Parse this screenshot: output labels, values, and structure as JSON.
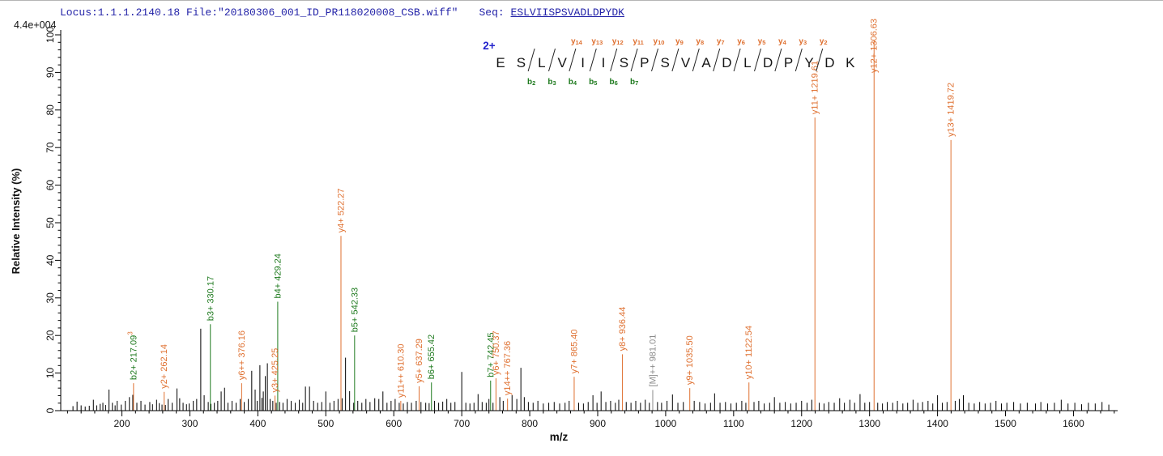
{
  "header": {
    "locus_file": "Locus:1.1.1.2140.18 File:\"20180306_001_ID_PR118020008_CSB.wiff\"",
    "seq_label": "Seq:",
    "seq_value": "ESLVIISPSVADLDPYDK",
    "max_intensity": "4.4e+004"
  },
  "colors": {
    "y_ion": "#DF7030",
    "b_ion": "#1E7A1E",
    "precursor": "#8C8C8C",
    "noise": "#000000",
    "axis": "#000000",
    "charge": "#2222CC",
    "header_text": "#2323A8"
  },
  "chart_data": {
    "type": "ms2_peak_spectrum",
    "xlabel": "m/z",
    "ylabel": "Relative  Intensity (%)",
    "x_axis": {
      "min": 110,
      "max": 1665,
      "label_start": 200,
      "label_end": 1600,
      "major_step": 100,
      "minor_step": 20
    },
    "y_axis": {
      "min": 0,
      "max": 100,
      "major_step": 10,
      "minor_step": 2
    },
    "precursor_charge": "2+",
    "sequence": "ESLVIISPSVADLDPYDK",
    "cleavages": [
      {
        "pos": 2,
        "b": "b2"
      },
      {
        "pos": 3,
        "b": "b3"
      },
      {
        "pos": 4,
        "b": "b4",
        "y": "y14"
      },
      {
        "pos": 5,
        "b": "b5",
        "y": "y13"
      },
      {
        "pos": 6,
        "b": "b6",
        "y": "y12"
      },
      {
        "pos": 7,
        "b": "b7",
        "y": "y11"
      },
      {
        "pos": 8,
        "y": "y10"
      },
      {
        "pos": 9,
        "y": "y9"
      },
      {
        "pos": 10,
        "y": "y8"
      },
      {
        "pos": 11,
        "y": "y7"
      },
      {
        "pos": 12,
        "y": "y6"
      },
      {
        "pos": 13,
        "y": "y5"
      },
      {
        "pos": 14,
        "y": "y4"
      },
      {
        "pos": 15,
        "y": "y3"
      },
      {
        "pos": 16,
        "y": "y2"
      }
    ],
    "labeled_peaks": [
      {
        "mz": 217.09,
        "pct": 7.3,
        "type": "b",
        "label": "b2+ 217.09",
        "sup": "3",
        "line": "y"
      },
      {
        "mz": 262.14,
        "pct": 5.0,
        "type": "y",
        "label": "y2+ 262.14"
      },
      {
        "mz": 330.17,
        "pct": 23.0,
        "type": "b",
        "label": "b3+ 330.17"
      },
      {
        "mz": 376.16,
        "pct": 7.3,
        "type": "y",
        "label": "y6++ 376.16"
      },
      {
        "mz": 425.25,
        "pct": 4.0,
        "type": "y",
        "label": "y3+ 425.25"
      },
      {
        "mz": 429.24,
        "pct": 29.0,
        "type": "b",
        "label": "b4+ 429.24"
      },
      {
        "mz": 522.27,
        "pct": 46.5,
        "type": "y",
        "label": "y4+ 522.27"
      },
      {
        "mz": 542.33,
        "pct": 20.0,
        "type": "b",
        "label": "b5+ 542.33"
      },
      {
        "mz": 610.3,
        "pct": 2.6,
        "type": "y",
        "label": "y11++ 610.30"
      },
      {
        "mz": 637.29,
        "pct": 6.5,
        "type": "y",
        "label": "y5+ 637.29"
      },
      {
        "mz": 655.42,
        "pct": 7.5,
        "type": "b",
        "label": "b6+ 655.42"
      },
      {
        "mz": 742.45,
        "pct": 8.0,
        "type": "b",
        "label": "b7+ 742.45"
      },
      {
        "mz": 750.37,
        "pct": 8.6,
        "type": "y",
        "label": "y6+ 750.37"
      },
      {
        "mz": 767.36,
        "pct": 3.2,
        "type": "y",
        "label": "y14++ 767.36"
      },
      {
        "mz": 865.4,
        "pct": 9.0,
        "type": "y",
        "label": "y7+ 865.40"
      },
      {
        "mz": 936.44,
        "pct": 15.0,
        "type": "y",
        "label": "y8+ 936.44"
      },
      {
        "mz": 981.01,
        "pct": 5.5,
        "type": "M",
        "label": "[M]++ 981.01"
      },
      {
        "mz": 1035.5,
        "pct": 6.0,
        "type": "y",
        "label": "y9+ 1035.50"
      },
      {
        "mz": 1122.54,
        "pct": 7.5,
        "type": "y",
        "label": "y10+ 1122.54"
      },
      {
        "mz": 1219.61,
        "pct": 78.0,
        "type": "y",
        "label": "y11+ 1219.61"
      },
      {
        "mz": 1306.63,
        "pct": 98.5,
        "type": "y",
        "label": "y12+ 1306.63",
        "label_dy": 40
      },
      {
        "mz": 1419.72,
        "pct": 72.0,
        "type": "y",
        "label": "y13+ 1419.72"
      }
    ],
    "noise_peaks": [
      [
        128,
        1.2
      ],
      [
        134,
        2.4
      ],
      [
        140,
        1.4
      ],
      [
        146,
        1.1
      ],
      [
        152,
        1.3
      ],
      [
        158,
        2.9
      ],
      [
        163,
        1.4
      ],
      [
        168,
        1.8
      ],
      [
        172,
        2.1
      ],
      [
        176,
        1.5
      ],
      [
        181,
        5.6
      ],
      [
        186,
        2.1
      ],
      [
        190,
        1.4
      ],
      [
        193,
        2.6
      ],
      [
        199,
        1.6
      ],
      [
        205,
        2.6
      ],
      [
        211,
        3.6
      ],
      [
        216,
        4.2
      ],
      [
        222,
        2.1
      ],
      [
        228,
        2.6
      ],
      [
        234,
        1.6
      ],
      [
        241,
        2.3
      ],
      [
        245,
        1.7
      ],
      [
        251,
        2.9
      ],
      [
        255,
        2.0
      ],
      [
        259,
        1.6
      ],
      [
        264,
        1.5
      ],
      [
        268,
        3.1
      ],
      [
        274,
        2.1
      ],
      [
        281,
        5.9
      ],
      [
        285,
        3.3
      ],
      [
        290,
        2.1
      ],
      [
        295,
        1.7
      ],
      [
        299,
        1.9
      ],
      [
        305,
        2.6
      ],
      [
        310,
        3.1
      ],
      [
        316,
        21.8
      ],
      [
        321,
        4.1
      ],
      [
        327,
        2.3
      ],
      [
        331,
        1.8
      ],
      [
        336,
        2.1
      ],
      [
        341,
        2.6
      ],
      [
        346,
        5.1
      ],
      [
        351,
        6.1
      ],
      [
        356,
        2.1
      ],
      [
        362,
        2.6
      ],
      [
        368,
        2.1
      ],
      [
        374,
        3.1
      ],
      [
        380,
        2.3
      ],
      [
        386,
        3.1
      ],
      [
        391,
        10.6
      ],
      [
        396,
        5.6
      ],
      [
        399,
        2.6
      ],
      [
        403,
        12.1
      ],
      [
        406,
        3.4
      ],
      [
        408,
        5.1
      ],
      [
        411,
        9.2
      ],
      [
        414,
        12.6
      ],
      [
        418,
        3.1
      ],
      [
        422,
        2.6
      ],
      [
        427,
        2.1
      ],
      [
        432,
        2.3
      ],
      [
        437,
        2.1
      ],
      [
        443,
        3.1
      ],
      [
        449,
        2.6
      ],
      [
        455,
        2.1
      ],
      [
        461,
        2.9
      ],
      [
        466,
        2.1
      ],
      [
        470,
        6.4
      ],
      [
        476,
        6.4
      ],
      [
        482,
        2.6
      ],
      [
        488,
        2.1
      ],
      [
        494,
        2.3
      ],
      [
        500,
        5.1
      ],
      [
        506,
        2.1
      ],
      [
        512,
        2.6
      ],
      [
        518,
        3.1
      ],
      [
        524,
        3.3
      ],
      [
        529,
        14.1
      ],
      [
        535,
        5.2
      ],
      [
        541,
        2.1
      ],
      [
        547,
        2.6
      ],
      [
        553,
        2.1
      ],
      [
        559,
        3.1
      ],
      [
        565,
        2.3
      ],
      [
        572,
        3.3
      ],
      [
        578,
        3.1
      ],
      [
        584,
        5.1
      ],
      [
        590,
        2.1
      ],
      [
        596,
        2.6
      ],
      [
        602,
        3.1
      ],
      [
        608,
        2.1
      ],
      [
        614,
        1.9
      ],
      [
        620,
        2.3
      ],
      [
        626,
        2.1
      ],
      [
        633,
        2.6
      ],
      [
        640,
        2.3
      ],
      [
        647,
        2.1
      ],
      [
        652,
        2.0
      ],
      [
        660,
        2.6
      ],
      [
        666,
        2.1
      ],
      [
        672,
        2.4
      ],
      [
        678,
        3.1
      ],
      [
        684,
        2.1
      ],
      [
        690,
        2.3
      ],
      [
        700,
        10.3
      ],
      [
        706,
        2.1
      ],
      [
        712,
        1.9
      ],
      [
        718,
        2.1
      ],
      [
        724,
        4.4
      ],
      [
        730,
        2.3
      ],
      [
        736,
        2.1
      ],
      [
        740,
        3.1
      ],
      [
        746,
        2.1
      ],
      [
        756,
        3.6
      ],
      [
        761,
        2.6
      ],
      [
        774,
        4.1
      ],
      [
        781,
        3.1
      ],
      [
        787,
        11.4
      ],
      [
        792,
        3.6
      ],
      [
        798,
        2.3
      ],
      [
        805,
        2.1
      ],
      [
        812,
        2.6
      ],
      [
        820,
        1.9
      ],
      [
        828,
        2.1
      ],
      [
        836,
        2.3
      ],
      [
        844,
        1.9
      ],
      [
        852,
        2.1
      ],
      [
        858,
        2.6
      ],
      [
        872,
        2.1
      ],
      [
        879,
        1.9
      ],
      [
        886,
        2.3
      ],
      [
        893,
        4.1
      ],
      [
        899,
        2.1
      ],
      [
        905,
        5.1
      ],
      [
        912,
        2.3
      ],
      [
        919,
        2.6
      ],
      [
        926,
        2.1
      ],
      [
        931,
        2.9
      ],
      [
        942,
        2.3
      ],
      [
        949,
        2.1
      ],
      [
        956,
        2.6
      ],
      [
        963,
        2.1
      ],
      [
        970,
        2.9
      ],
      [
        976,
        2.1
      ],
      [
        988,
        2.3
      ],
      [
        994,
        2.1
      ],
      [
        1002,
        2.6
      ],
      [
        1010,
        4.3
      ],
      [
        1018,
        2.1
      ],
      [
        1026,
        2.3
      ],
      [
        1042,
        2.6
      ],
      [
        1050,
        2.3
      ],
      [
        1058,
        1.9
      ],
      [
        1066,
        2.1
      ],
      [
        1072,
        4.6
      ],
      [
        1080,
        2.1
      ],
      [
        1088,
        2.3
      ],
      [
        1096,
        1.9
      ],
      [
        1104,
        2.1
      ],
      [
        1112,
        2.6
      ],
      [
        1118,
        2.1
      ],
      [
        1130,
        2.3
      ],
      [
        1137,
        2.6
      ],
      [
        1145,
        1.9
      ],
      [
        1153,
        2.1
      ],
      [
        1160,
        3.6
      ],
      [
        1168,
        2.1
      ],
      [
        1176,
        2.3
      ],
      [
        1184,
        1.9
      ],
      [
        1192,
        2.1
      ],
      [
        1200,
        2.6
      ],
      [
        1208,
        2.1
      ],
      [
        1215,
        2.9
      ],
      [
        1226,
        2.1
      ],
      [
        1233,
        1.9
      ],
      [
        1240,
        2.3
      ],
      [
        1248,
        2.1
      ],
      [
        1256,
        3.3
      ],
      [
        1263,
        2.1
      ],
      [
        1271,
        2.9
      ],
      [
        1278,
        2.1
      ],
      [
        1286,
        4.4
      ],
      [
        1293,
        2.1
      ],
      [
        1300,
        2.3
      ],
      [
        1312,
        2.1
      ],
      [
        1319,
        1.9
      ],
      [
        1326,
        2.3
      ],
      [
        1334,
        2.1
      ],
      [
        1341,
        2.6
      ],
      [
        1349,
        1.9
      ],
      [
        1356,
        2.1
      ],
      [
        1364,
        2.9
      ],
      [
        1371,
        2.1
      ],
      [
        1378,
        2.3
      ],
      [
        1386,
        2.6
      ],
      [
        1393,
        1.9
      ],
      [
        1400,
        4.1
      ],
      [
        1407,
        2.1
      ],
      [
        1414,
        2.3
      ],
      [
        1426,
        2.6
      ],
      [
        1432,
        3.1
      ],
      [
        1438,
        4.1
      ],
      [
        1446,
        2.1
      ],
      [
        1454,
        1.9
      ],
      [
        1462,
        2.3
      ],
      [
        1470,
        1.9
      ],
      [
        1478,
        2.1
      ],
      [
        1486,
        2.6
      ],
      [
        1494,
        1.9
      ],
      [
        1502,
        2.1
      ],
      [
        1512,
        2.3
      ],
      [
        1522,
        1.9
      ],
      [
        1532,
        2.1
      ],
      [
        1544,
        1.9
      ],
      [
        1552,
        2.3
      ],
      [
        1562,
        1.9
      ],
      [
        1572,
        2.1
      ],
      [
        1582,
        2.9
      ],
      [
        1592,
        1.9
      ],
      [
        1602,
        2.1
      ],
      [
        1612,
        1.7
      ],
      [
        1622,
        2.1
      ],
      [
        1632,
        1.9
      ],
      [
        1642,
        2.3
      ],
      [
        1652,
        1.6
      ]
    ]
  }
}
